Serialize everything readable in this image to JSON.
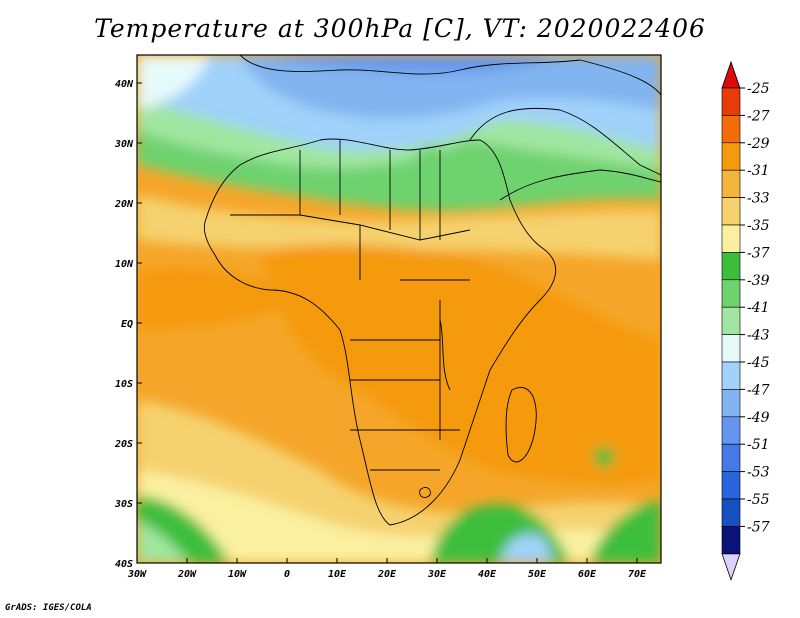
{
  "title": "Temperature at 300hPa [C], VT: 2020022406",
  "credit": "GrADS: IGES/COLA",
  "map": {
    "lon_ticks": [
      "30W",
      "20W",
      "10W",
      "0",
      "10E",
      "20E",
      "30E",
      "40E",
      "50E",
      "60E",
      "70E"
    ],
    "lat_ticks": [
      "40N",
      "30N",
      "20N",
      "10N",
      "EQ",
      "10S",
      "20S",
      "30S",
      "40S"
    ]
  },
  "colorbar": {
    "labels": [
      "-25",
      "-27",
      "-29",
      "-31",
      "-33",
      "-35",
      "-37",
      "-39",
      "-41",
      "-43",
      "-45",
      "-47",
      "-49",
      "-51",
      "-53",
      "-55",
      "-57"
    ],
    "colors": [
      "#e63c0a",
      "#f26c0a",
      "#f59a0a",
      "#f5b43c",
      "#f5d26e",
      "#faf0a0",
      "#3cbe3c",
      "#6ed26e",
      "#a0e6a0",
      "#e6fafa",
      "#a0d2fa",
      "#82b4f0",
      "#6496f0",
      "#4678e6",
      "#2864dc",
      "#1450be",
      "#0a1478"
    ],
    "top_arrow_color": "#dc0a0a",
    "bottom_arrow_color": "#dcd2fa"
  }
}
